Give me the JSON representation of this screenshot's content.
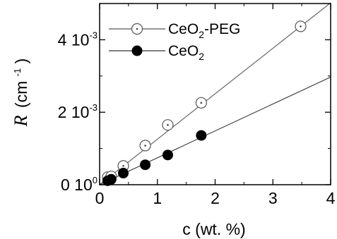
{
  "chart_data": {
    "type": "scatter",
    "xlabel": "c (wt. %)",
    "ylabel": "R (cm-1)",
    "ylabel_symbol": "R",
    "ylabel_unit": "(cm",
    "ylabel_exp": "-1",
    "ylabel_close": ")",
    "xlim": [
      0,
      4
    ],
    "ylim": [
      0,
      0.005
    ],
    "x_ticks": [
      {
        "value": 0,
        "label": "0"
      },
      {
        "value": 1,
        "label": "1"
      },
      {
        "value": 2,
        "label": "2"
      },
      {
        "value": 3,
        "label": "3"
      },
      {
        "value": 4,
        "label": "4"
      }
    ],
    "y_ticks": [
      {
        "value": 0,
        "mant": "0 10",
        "exp": "0"
      },
      {
        "value": 0.002,
        "mant": "2 10",
        "exp": "-3"
      },
      {
        "value": 0.004,
        "mant": "4 10",
        "exp": "-3"
      }
    ],
    "grid": false,
    "legend": "top-left",
    "series": [
      {
        "name": "CeO2-PEG",
        "label_parts": [
          "CeO",
          "2",
          "-PEG"
        ],
        "marker": "open-circle-dot",
        "color": "#000000",
        "x": [
          0.14,
          0.2,
          0.41,
          0.79,
          1.18,
          1.76,
          3.48
        ],
        "y": [
          0.00021,
          0.00023,
          0.00052,
          0.00108,
          0.00165,
          0.00226,
          0.00437
        ],
        "fit": {
          "x": [
            0,
            4
          ],
          "y": [
            0,
            0.00502
          ]
        }
      },
      {
        "name": "CeO2",
        "label_parts": [
          "CeO",
          "2",
          ""
        ],
        "marker": "filled-circle",
        "color": "#000000",
        "x": [
          0.14,
          0.2,
          0.41,
          0.79,
          1.18,
          1.76
        ],
        "y": [
          0.00011,
          0.00015,
          0.00032,
          0.00055,
          0.00082,
          0.00136
        ],
        "fit": {
          "x": [
            0,
            4
          ],
          "y": [
            0,
            0.00297
          ]
        }
      }
    ]
  }
}
